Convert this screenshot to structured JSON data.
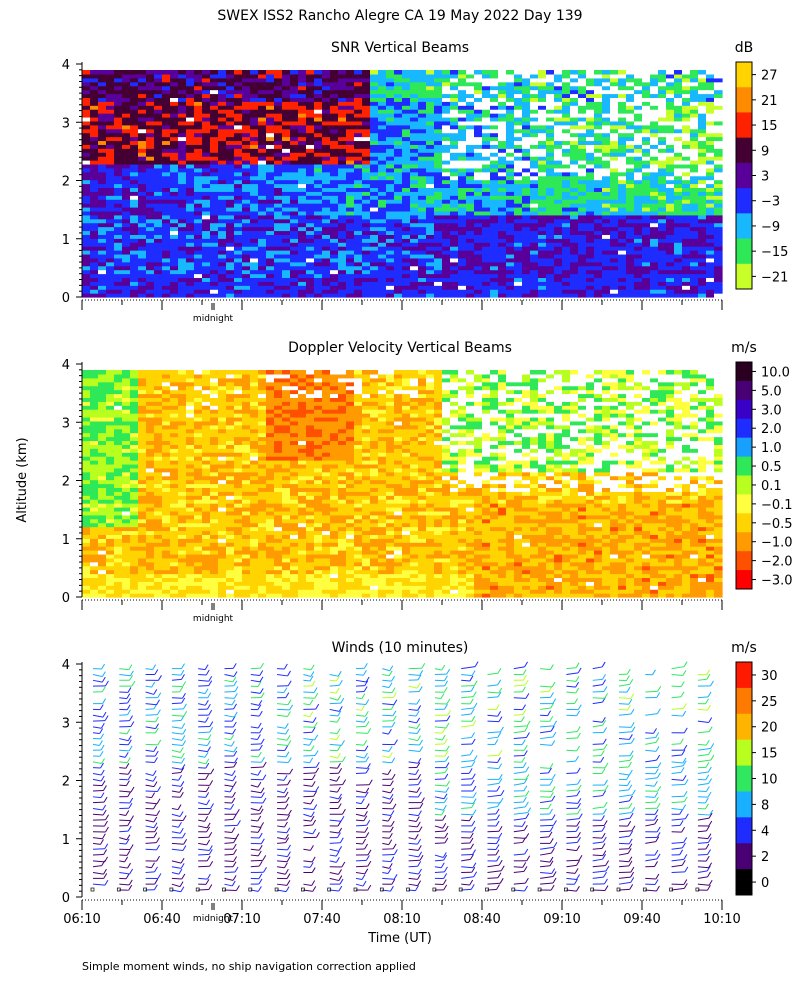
{
  "figure": {
    "title": "SWEX ISS2 Rancho Alegre CA  19 May 2022 Day 139",
    "y_axis_label": "Altitude (km)",
    "x_axis_label": "Time (UT)",
    "footnote": "Simple moment winds, no ship navigation correction applied",
    "midnight_label": "midnight"
  },
  "chart_data": [
    {
      "type": "heatmap",
      "title": "SNR Vertical Beams",
      "ylim": [
        0,
        4
      ],
      "y_ticks": [
        "0",
        "1",
        "2",
        "3",
        "4"
      ],
      "colorbar": {
        "unit": "dB",
        "labels": [
          "27",
          "21",
          "15",
          "9",
          "3",
          "−3",
          "−9",
          "−15",
          "−21"
        ],
        "colors": [
          "#ffd400",
          "#ff8c00",
          "#ff2200",
          "#440033",
          "#5a009a",
          "#1e2cff",
          "#18b8ff",
          "#2ee858",
          "#c8ff28"
        ]
      }
    },
    {
      "type": "heatmap",
      "title": "Doppler Velocity Vertical Beams",
      "ylim": [
        0,
        4
      ],
      "y_ticks": [
        "0",
        "1",
        "2",
        "3",
        "4"
      ],
      "colorbar": {
        "unit": "m/s",
        "labels": [
          "10.0",
          "5.0",
          "3.0",
          "2.0",
          "1.0",
          "0.5",
          "0.1",
          "−0.1",
          "−0.5",
          "−1.0",
          "−2.0",
          "−3.0"
        ],
        "colors": [
          "#2a0020",
          "#4a0075",
          "#3a00c8",
          "#1e2cff",
          "#18a0ff",
          "#2ee858",
          "#b8ff20",
          "#ffff40",
          "#ffd400",
          "#ff9a00",
          "#ff5000",
          "#ff0000"
        ]
      }
    },
    {
      "type": "scatter",
      "title": "Winds (10 minutes)",
      "ylim": [
        0,
        4
      ],
      "y_ticks": [
        "0",
        "1",
        "2",
        "3",
        "4"
      ],
      "x_ticks": [
        "06:10",
        "06:40",
        "07:10",
        "07:40",
        "08:10",
        "08:40",
        "09:10",
        "09:40",
        "10:10"
      ],
      "colorbar": {
        "unit": "m/s",
        "labels": [
          "30",
          "25",
          "20",
          "15",
          "10",
          "8",
          "4",
          "2",
          "0"
        ],
        "colors": [
          "#ff1a00",
          "#ff7a00",
          "#ffb400",
          "#b8ff20",
          "#30e860",
          "#18b0ff",
          "#1e2cff",
          "#4a0075",
          "#000000"
        ]
      }
    }
  ]
}
